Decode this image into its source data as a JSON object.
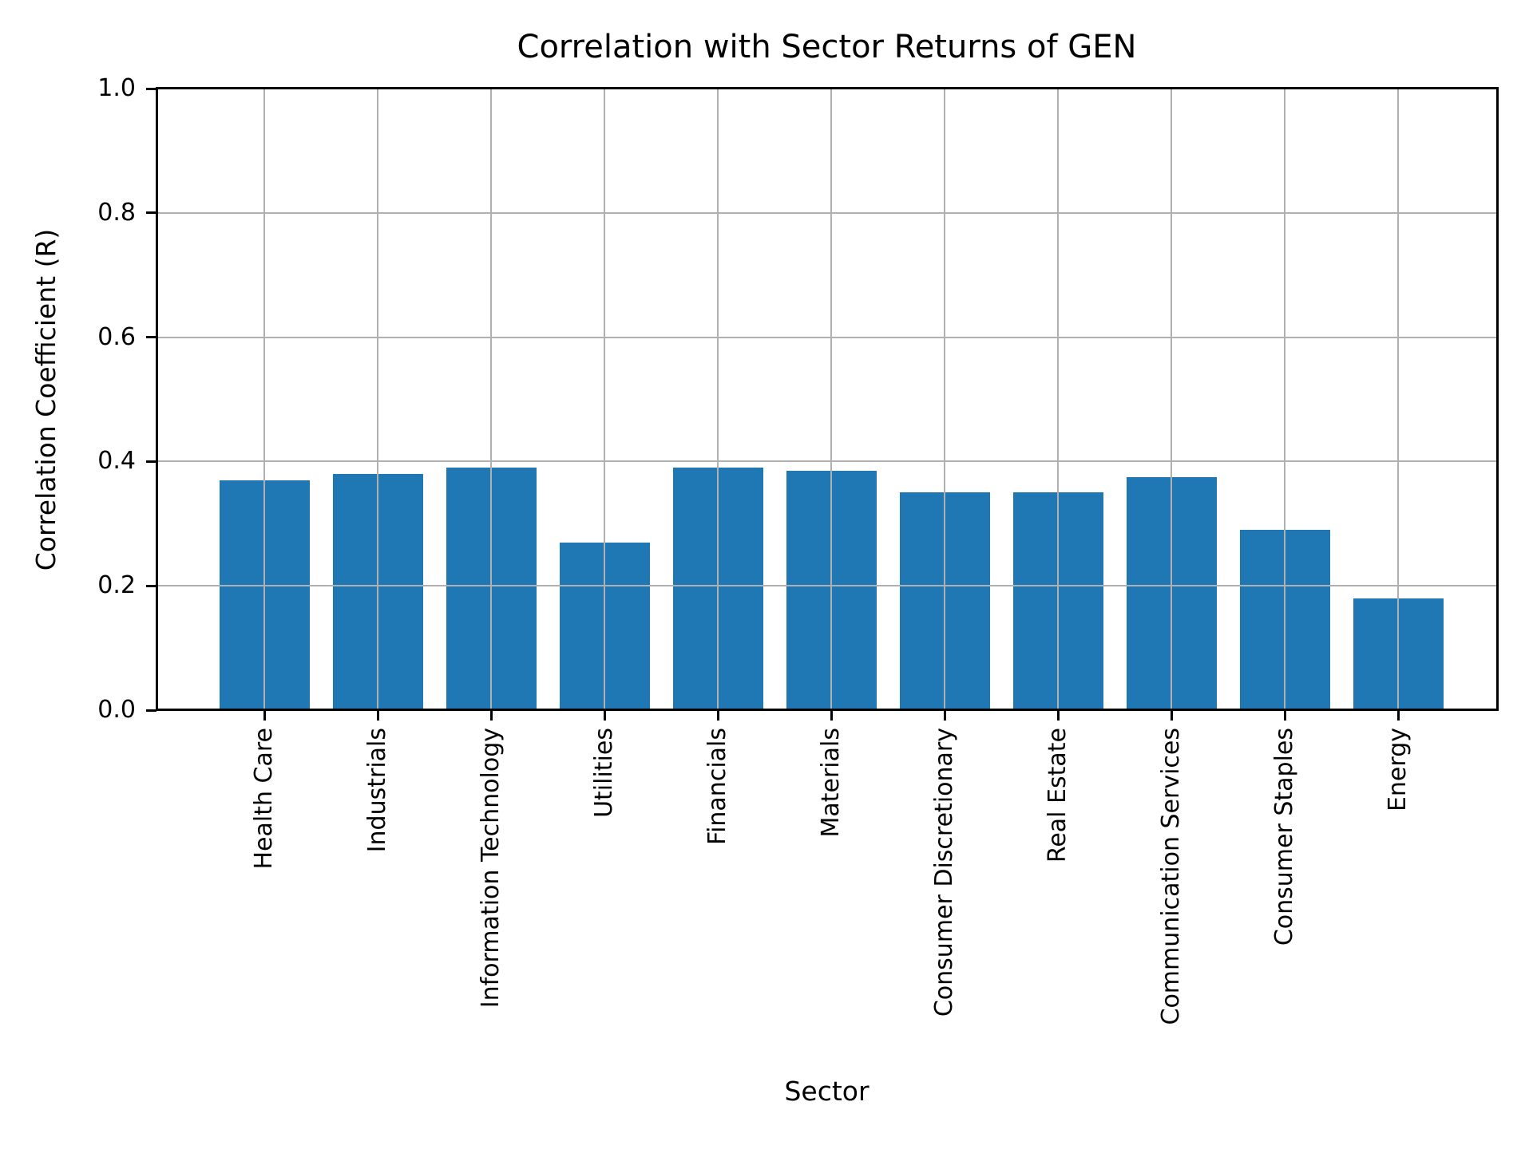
{
  "chart_data": {
    "type": "bar",
    "title": "Correlation with Sector Returns of GEN",
    "xlabel": "Sector",
    "ylabel": "Correlation Coefficient (R)",
    "categories": [
      "Health Care",
      "Industrials",
      "Information Technology",
      "Utilities",
      "Financials",
      "Materials",
      "Consumer Discretionary",
      "Real Estate",
      "Communication Services",
      "Consumer Staples",
      "Energy"
    ],
    "values": [
      0.37,
      0.38,
      0.39,
      0.27,
      0.39,
      0.385,
      0.35,
      0.35,
      0.375,
      0.29,
      0.18
    ],
    "ylim": [
      0.0,
      1.0
    ],
    "yticks": [
      0.0,
      0.2,
      0.4,
      0.6,
      0.8,
      1.0
    ],
    "ytick_labels": [
      "0.0",
      "0.2",
      "0.4",
      "0.6",
      "0.8",
      "1.0"
    ],
    "grid": true,
    "grid_on_top_of_bars": true,
    "legend": "none",
    "colors": {
      "bar": "#1f77b4",
      "grid": "#b0b0b0",
      "spine": "#000000",
      "text": "#000000",
      "background": "#ffffff"
    }
  }
}
